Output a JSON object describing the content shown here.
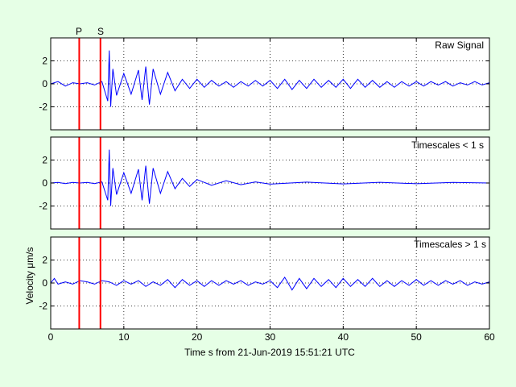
{
  "figure": {
    "background": "#e6ffe6",
    "signal_color": "#0000ff",
    "phase_color": "#ff0000",
    "xlabel": "Time s from 21-Jun-2019 15:51:21 UTC",
    "ylabel": "Velocity μm/s"
  },
  "chart_data": [
    {
      "type": "line",
      "title": "Raw Signal",
      "xlim": [
        0,
        60
      ],
      "ylim": [
        -4,
        4
      ],
      "yticks": [
        -2,
        0,
        2
      ],
      "xticks": [
        0,
        10,
        20,
        30,
        40,
        50,
        60
      ],
      "grid": true,
      "phase_markers": [
        {
          "label": "P",
          "x": 3.9
        },
        {
          "label": "S",
          "x": 6.8
        }
      ],
      "series": [
        {
          "x": [
            0,
            1,
            2,
            3,
            4,
            5,
            6,
            7,
            7.8,
            8.0,
            8.2,
            8.5,
            9,
            10,
            11,
            12,
            12.5,
            13,
            13.5,
            14,
            15,
            16,
            17,
            18,
            19,
            20,
            21,
            22,
            23,
            24,
            25,
            26,
            27,
            28,
            29,
            30,
            31,
            32,
            33,
            34,
            35,
            36,
            37,
            38,
            39,
            40,
            41,
            42,
            43,
            44,
            45,
            46,
            47,
            48,
            49,
            50,
            51,
            52,
            53,
            54,
            55,
            56,
            57,
            58,
            59,
            60
          ],
          "y": [
            0,
            0.2,
            -0.2,
            0.1,
            0,
            0.1,
            -0.1,
            0.2,
            -1.5,
            2.9,
            -2.0,
            1.3,
            -1.0,
            0.9,
            -0.9,
            1.2,
            -1.4,
            1.5,
            -1.8,
            1.3,
            -0.9,
            1.0,
            -0.6,
            0.4,
            -0.4,
            0.4,
            -0.3,
            0.3,
            -0.2,
            0.2,
            -0.3,
            0.2,
            -0.2,
            0.3,
            -0.2,
            0.3,
            -0.4,
            0.4,
            -0.5,
            0.3,
            -0.4,
            0.4,
            -0.3,
            0.3,
            -0.3,
            0.4,
            -0.4,
            0.4,
            -0.3,
            0.3,
            -0.3,
            0.2,
            -0.3,
            0.2,
            -0.2,
            0.2,
            -0.2,
            0.2,
            -0.1,
            0.2,
            -0.2,
            0.1,
            -0.1,
            0.2,
            -0.1,
            0.1
          ]
        }
      ]
    },
    {
      "type": "line",
      "title": "Timescales < 1 s",
      "xlim": [
        0,
        60
      ],
      "ylim": [
        -4,
        4
      ],
      "yticks": [
        -2,
        0,
        2
      ],
      "xticks": [
        0,
        10,
        20,
        30,
        40,
        50,
        60
      ],
      "grid": true,
      "phase_markers": [
        {
          "label": "P",
          "x": 3.9
        },
        {
          "label": "S",
          "x": 6.8
        }
      ],
      "series": [
        {
          "x": [
            0,
            1,
            2,
            3,
            4,
            5,
            6,
            7,
            7.8,
            8.0,
            8.2,
            8.5,
            9,
            10,
            11,
            12,
            12.5,
            13,
            13.5,
            14,
            15,
            16,
            17,
            18,
            19,
            20,
            22,
            24,
            26,
            28,
            30,
            35,
            40,
            45,
            50,
            55,
            60
          ],
          "y": [
            0,
            0.05,
            -0.05,
            0.05,
            0,
            0.05,
            -0.05,
            0.1,
            -1.5,
            2.9,
            -2.0,
            1.3,
            -1.0,
            0.9,
            -0.9,
            1.2,
            -1.5,
            1.5,
            -1.8,
            1.3,
            -0.9,
            1.0,
            -0.5,
            0.4,
            -0.3,
            0.3,
            -0.2,
            0.2,
            -0.15,
            0.1,
            -0.1,
            0.08,
            -0.08,
            0.06,
            -0.06,
            0.05,
            0
          ]
        }
      ]
    },
    {
      "type": "line",
      "title": "Timescales > 1 s",
      "xlim": [
        0,
        60
      ],
      "ylim": [
        -4,
        4
      ],
      "yticks": [
        -2,
        0,
        2
      ],
      "xticks": [
        0,
        10,
        20,
        30,
        40,
        50,
        60
      ],
      "grid": true,
      "phase_markers": [
        {
          "label": "P",
          "x": 3.9
        },
        {
          "label": "S",
          "x": 6.8
        }
      ],
      "series": [
        {
          "x": [
            0,
            0.5,
            1,
            2,
            3,
            4,
            5,
            6,
            7,
            8,
            9,
            10,
            11,
            12,
            13,
            14,
            15,
            16,
            17,
            18,
            19,
            20,
            21,
            22,
            23,
            24,
            25,
            26,
            27,
            28,
            29,
            30,
            31,
            32,
            33,
            34,
            35,
            36,
            37,
            38,
            39,
            40,
            41,
            42,
            43,
            44,
            45,
            46,
            47,
            48,
            49,
            50,
            51,
            52,
            53,
            54,
            55,
            56,
            57,
            58,
            59,
            60
          ],
          "y": [
            0,
            0.4,
            -0.1,
            0.1,
            -0.1,
            0.2,
            0.1,
            -0.1,
            0.2,
            0.1,
            -0.2,
            0.2,
            -0.1,
            0.2,
            -0.3,
            0.1,
            -0.2,
            0.3,
            -0.4,
            0.3,
            -0.2,
            0.2,
            -0.3,
            0.2,
            -0.2,
            0.2,
            -0.1,
            0.2,
            -0.2,
            0.1,
            -0.1,
            0.2,
            -0.4,
            0.5,
            -0.6,
            0.4,
            -0.5,
            0.4,
            -0.3,
            0.3,
            -0.4,
            0.4,
            -0.3,
            0.3,
            -0.3,
            0.4,
            -0.3,
            0.2,
            -0.3,
            0.2,
            -0.2,
            0.3,
            -0.2,
            0.2,
            -0.2,
            0.2,
            -0.1,
            0.2,
            -0.2,
            0.1,
            -0.1,
            0.1
          ]
        }
      ]
    }
  ]
}
